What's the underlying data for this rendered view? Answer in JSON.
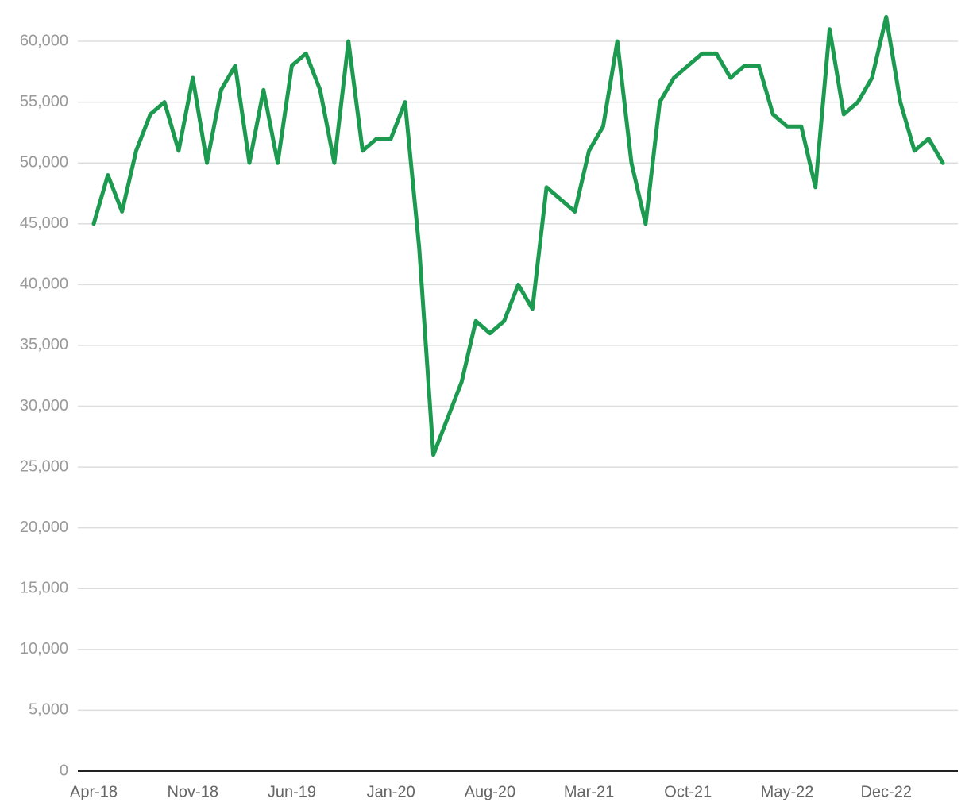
{
  "chart_data": {
    "type": "line",
    "categories": [
      "Apr-18",
      null,
      null,
      null,
      null,
      null,
      null,
      "Nov-18",
      null,
      null,
      null,
      null,
      null,
      null,
      "Jun-19",
      null,
      null,
      null,
      null,
      null,
      null,
      "Jan-20",
      null,
      null,
      null,
      null,
      null,
      null,
      "Aug-20",
      null,
      null,
      null,
      null,
      null,
      null,
      "Mar-21",
      null,
      null,
      null,
      null,
      null,
      null,
      "Oct-21",
      null,
      null,
      null,
      null,
      null,
      null,
      "May-22",
      null,
      null,
      null,
      null,
      null,
      null,
      "Dec-22",
      null,
      null,
      null,
      null
    ],
    "values": [
      45000,
      49000,
      46000,
      51000,
      54000,
      55000,
      51000,
      57000,
      50000,
      56000,
      58000,
      50000,
      56000,
      50000,
      58000,
      59000,
      56000,
      50000,
      60000,
      51000,
      52000,
      52000,
      55000,
      43000,
      26000,
      29000,
      32000,
      37000,
      36000,
      37000,
      40000,
      38000,
      48000,
      47000,
      46000,
      51000,
      53000,
      60000,
      50000,
      45000,
      55000,
      57000,
      58000,
      59000,
      59000,
      57000,
      58000,
      58000,
      54000,
      53000,
      53000,
      48000,
      61000,
      54000,
      55000,
      57000,
      62000,
      55000,
      51000,
      52000,
      50000
    ],
    "color": "#1b9a50",
    "ylim": [
      0,
      62000
    ],
    "yticks": [
      0,
      {
        "value": 5000,
        "label": "5,000"
      },
      {
        "value": 10000,
        "label": "10,000"
      },
      {
        "value": 15000,
        "label": "15,000"
      },
      {
        "value": 20000,
        "label": "20,000"
      },
      {
        "value": 25000,
        "label": "25,000"
      },
      {
        "value": 30000,
        "label": "30,000"
      },
      {
        "value": 35000,
        "label": "35,000"
      },
      {
        "value": 40000,
        "label": "40,000"
      },
      {
        "value": 45000,
        "label": "45,000"
      },
      {
        "value": 50000,
        "label": "50,000"
      },
      {
        "value": 55000,
        "label": "55,000"
      },
      {
        "value": 60000,
        "label": "60,000"
      }
    ],
    "grid": true
  }
}
